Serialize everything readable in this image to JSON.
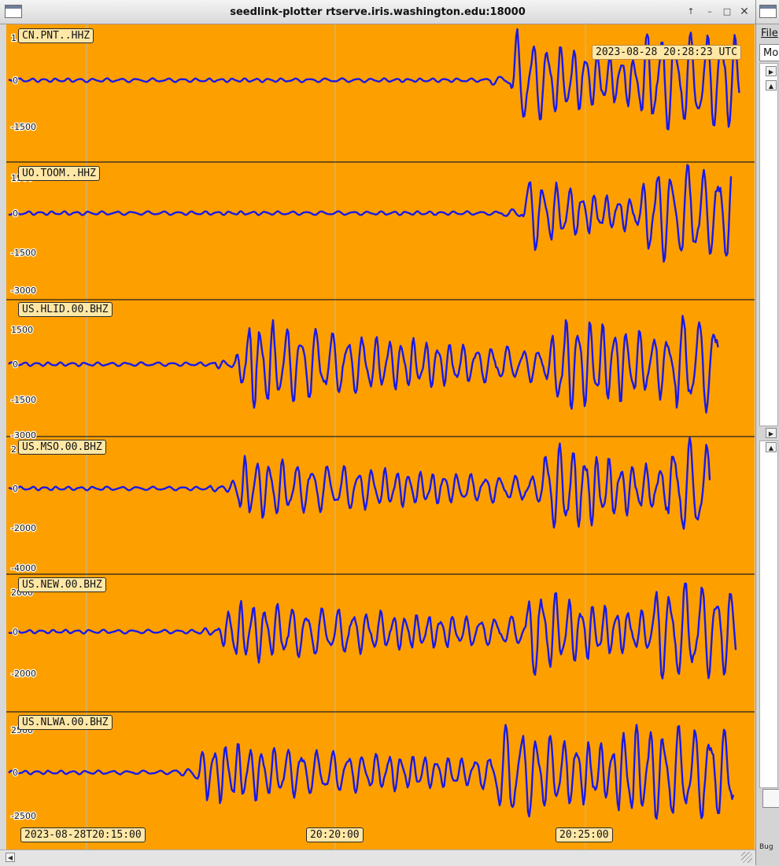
{
  "window": {
    "title": "seedlink-plotter rtserve.iris.washington.edu:18000",
    "buttons": {
      "up": "↑",
      "minimize": "–",
      "maximize": "□",
      "close": "✕"
    }
  },
  "plot": {
    "background": "#fe9f00",
    "trace_color": "#1a1ae6",
    "current_time": "2023-08-28 20:28:23 UTC",
    "time_labels": [
      "2023-08-28T20:15:00",
      "20:20:00",
      "20:25:00"
    ],
    "traces": [
      {
        "label": "CN.PNT..HHZ",
        "ticks": [
          "1",
          "0",
          "-1500"
        ]
      },
      {
        "label": "UO.TOOM..HHZ",
        "ticks": [
          "1500",
          "0",
          "-1500",
          "-3000"
        ]
      },
      {
        "label": "US.HLID.00.BHZ",
        "ticks": [
          "1500",
          "0",
          "-1500",
          "-3000"
        ]
      },
      {
        "label": "US.MSO.00.BHZ",
        "ticks": [
          "2",
          "0",
          "-2000",
          "-4000"
        ]
      },
      {
        "label": "US.NEW.00.BHZ",
        "ticks": [
          "2000",
          "0",
          "-2000"
        ]
      },
      {
        "label": "US.NLWA.00.BHZ",
        "ticks": [
          "2500",
          "0",
          "-2500"
        ]
      }
    ]
  },
  "right_window": {
    "menu": "File",
    "field": "Mo",
    "footer": "Bug"
  }
}
